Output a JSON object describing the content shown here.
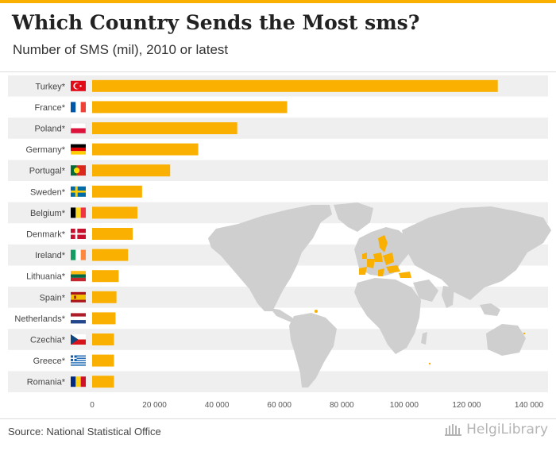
{
  "title": "Which Country Sends the Most sms?",
  "subtitle": "Number of SMS (mil), 2010 or latest",
  "source": "Source: National Statistical Office",
  "brand": "HelgiLibrary",
  "colors": {
    "bar": "#fab000",
    "band": "#efefef",
    "map": "#cfcfcf",
    "highlight": "#fab000",
    "topbar": "#fab000"
  },
  "chart_data": {
    "type": "bar",
    "orientation": "horizontal",
    "title": "Which Country Sends the Most sms?",
    "subtitle": "Number of SMS (mil), 2010 or latest",
    "categories": [
      "Turkey*",
      "France*",
      "Poland*",
      "Germany*",
      "Portugal*",
      "Sweden*",
      "Belgium*",
      "Denmark*",
      "Ireland*",
      "Lithuania*",
      "Spain*",
      "Netherlands*",
      "Czechia*",
      "Greece*",
      "Romania*"
    ],
    "flags": [
      "turkey-flag-icon",
      "france-flag-icon",
      "poland-flag-icon",
      "germany-flag-icon",
      "portugal-flag-icon",
      "sweden-flag-icon",
      "belgium-flag-icon",
      "denmark-flag-icon",
      "ireland-flag-icon",
      "lithuania-flag-icon",
      "spain-flag-icon",
      "netherlands-flag-icon",
      "czechia-flag-icon",
      "greece-flag-icon",
      "romania-flag-icon"
    ],
    "values": [
      130000,
      62500,
      46500,
      34000,
      25000,
      16000,
      14500,
      13000,
      11500,
      8500,
      7800,
      7500,
      7000,
      7000,
      7000
    ],
    "xlim": [
      0,
      140000
    ],
    "xticks": [
      0,
      20000,
      40000,
      60000,
      80000,
      100000,
      120000,
      140000
    ],
    "xtick_labels": [
      "0",
      "20 000",
      "40 000",
      "60 000",
      "80 000",
      "100 000",
      "120 000",
      "140 000"
    ],
    "xlabel": "",
    "ylabel": "",
    "legend": "none",
    "grid": false
  }
}
